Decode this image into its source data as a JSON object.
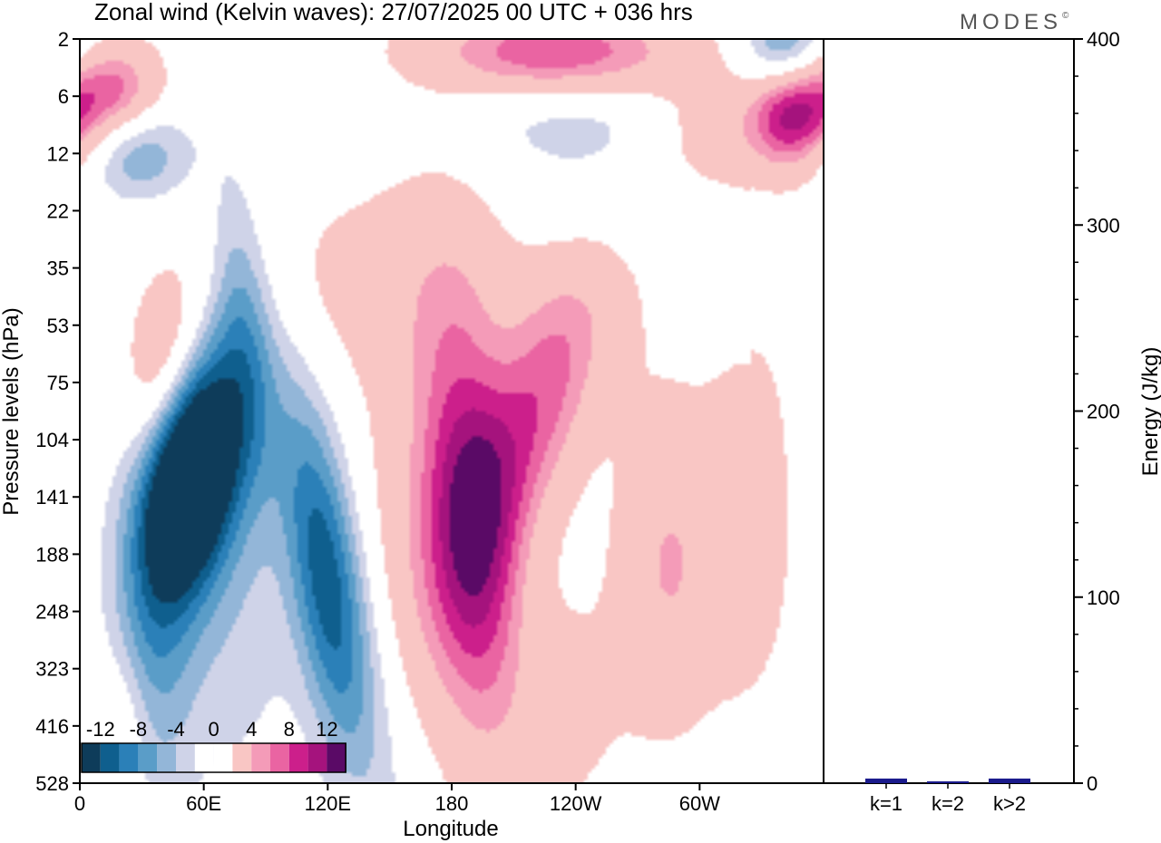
{
  "title": "Zonal wind (Kelvin waves):  27/07/2025  00 UTC  + 036 hrs",
  "brand": "MODES",
  "brand_mark": "©",
  "colors": {
    "neg": [
      "#0e3c5a",
      "#0f5f8e",
      "#2b80b8",
      "#5a9dc8",
      "#93b6d8",
      "#cfd3e8"
    ],
    "pos": [
      "#f9c6c4",
      "#f49bb8",
      "#ea64a2",
      "#cc1f8b",
      "#a5137d",
      "#5a0a66"
    ],
    "zero": "#ffffff",
    "energy_bar": "#1a1a8c"
  },
  "chart_data": [
    {
      "type": "heatmap",
      "description_field": "zonal wind anomaly, longitude vs pressure",
      "xlabel": "Longitude",
      "ylabel": "Pressure levels (hPa)",
      "x_ticks": [
        "0",
        "60E",
        "120E",
        "180",
        "120W",
        "60W"
      ],
      "x_tick_degrees": [
        0,
        60,
        120,
        180,
        240,
        300
      ],
      "xlim": [
        0,
        360
      ],
      "y_ticks": [
        "2",
        "6",
        "12",
        "22",
        "35",
        "53",
        "75",
        "104",
        "141",
        "188",
        "248",
        "323",
        "416",
        "528"
      ],
      "colorbar_labels": [
        "-12",
        "-8",
        "-4",
        "0",
        "4",
        "8",
        "12"
      ],
      "levels": [
        -14,
        -12,
        -10,
        -8,
        -6,
        -4,
        -2,
        2,
        4,
        6,
        8,
        10,
        12,
        14
      ],
      "features": [
        {
          "lon": 52,
          "level": 7.8,
          "value": -14,
          "dlon": 14,
          "dlev": 1.3,
          "tilt": -0.35
        },
        {
          "lon": 60,
          "level": 7.0,
          "value": -8,
          "dlon": 22,
          "dlev": 1.9,
          "tilt": -0.5
        },
        {
          "lon": 78,
          "level": 4.8,
          "value": -5,
          "dlon": 10,
          "dlev": 1.8,
          "tilt": 0.2
        },
        {
          "lon": 34,
          "level": 10.6,
          "value": -5,
          "dlon": 14,
          "dlev": 1.9
        },
        {
          "lon": 118,
          "level": 9.3,
          "value": -9,
          "dlon": 12,
          "dlev": 2.2,
          "tilt": 0.35
        },
        {
          "lon": 140,
          "level": 11.5,
          "value": -4,
          "dlon": 16,
          "dlev": 2.6,
          "tilt": 0.5
        },
        {
          "lon": 70,
          "level": 10.0,
          "value": -3,
          "dlon": 28,
          "dlev": 2.6
        },
        {
          "lon": 190,
          "level": 8.6,
          "value": 11,
          "dlon": 16,
          "dlev": 2.8,
          "tilt": 0.2
        },
        {
          "lon": 220,
          "level": 6.6,
          "value": 9,
          "dlon": 20,
          "dlev": 2.0,
          "tilt": -0.9
        },
        {
          "lon": 160,
          "level": 9.2,
          "value": 4,
          "dlon": 20,
          "dlev": 3.0
        },
        {
          "lon": 285,
          "level": 9.2,
          "value": 6,
          "dlon": 18,
          "dlev": 2.0
        },
        {
          "lon": 325,
          "level": 8.5,
          "value": 4,
          "dlon": 16,
          "dlev": 2.2
        },
        {
          "lon": 40,
          "level": 5.8,
          "value": 6,
          "dlon": 12,
          "dlev": 1.1,
          "tilt": -0.4
        },
        {
          "lon": 145,
          "level": 4.2,
          "value": 3,
          "dlon": 90,
          "dlev": 1.4,
          "tilt": -1.6
        },
        {
          "lon": 250,
          "level": 3.0,
          "value": -2.6,
          "dlon": 30,
          "dlev": 1.0
        },
        {
          "lon": 15,
          "level": 0.9,
          "value": 9,
          "dlon": 16,
          "dlev": 0.6,
          "tilt": -0.3
        },
        {
          "lon": 28,
          "level": 2.0,
          "value": -6,
          "dlon": 18,
          "dlev": 0.6
        },
        {
          "lon": 230,
          "level": 0.2,
          "value": 10,
          "dlon": 45,
          "dlev": 0.55
        },
        {
          "lon": 345,
          "level": 1.2,
          "value": 12,
          "dlon": 14,
          "dlev": 0.7
        },
        {
          "lon": 342,
          "level": 0.2,
          "value": -9,
          "dlon": 14,
          "dlev": 0.6
        },
        {
          "lon": 240,
          "level": 1.4,
          "value": -3,
          "dlon": 40,
          "dlev": 0.6
        },
        {
          "lon": 310,
          "level": 1.6,
          "value": 4,
          "dlon": 25,
          "dlev": 0.7
        },
        {
          "lon": 235,
          "level": 11.7,
          "value": 3,
          "dlon": 20,
          "dlev": 1.5
        },
        {
          "lon": 20,
          "level": 12.0,
          "value": 3,
          "dlon": 10,
          "dlev": 1.0
        }
      ]
    },
    {
      "type": "bar",
      "categories": [
        "k=1",
        "k=2",
        "k>2"
      ],
      "values": [
        2,
        0.5,
        2
      ],
      "ylabel": "Energy (J/kg)",
      "ylim": [
        0,
        400
      ],
      "y_ticks": [
        "0",
        "100",
        "200",
        "300",
        "400"
      ]
    }
  ]
}
